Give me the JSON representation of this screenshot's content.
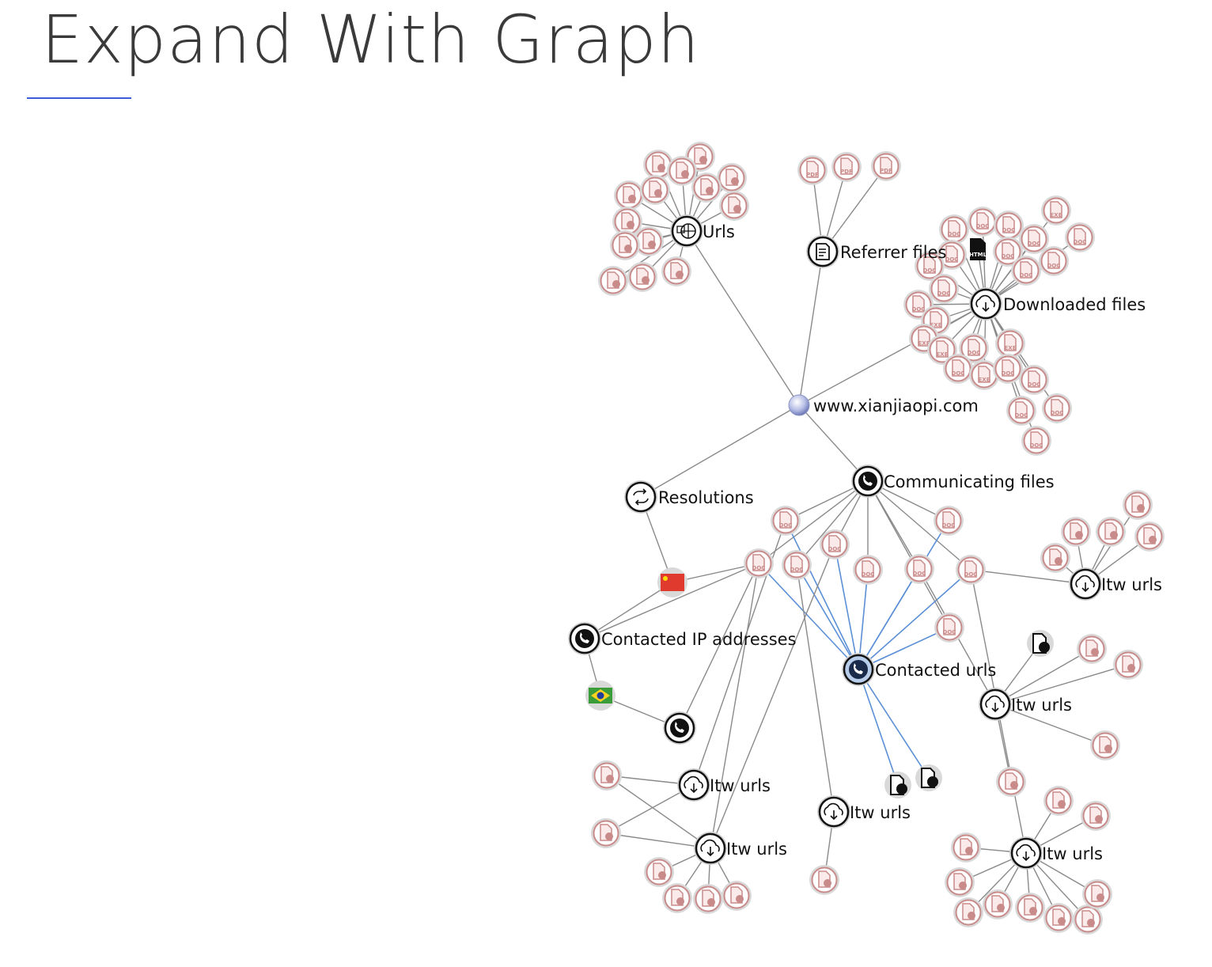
{
  "slide": {
    "title": "Expand With Graph"
  },
  "graph": {
    "colors": {
      "edge": "#8a8a8a",
      "edge_highlight": "#5b8fd6",
      "file_node": "#c98a8a",
      "hub_fill": "#ffffff",
      "selected_fill": "#b8cdea"
    },
    "root": {
      "label": "www.xianjiaopi.com",
      "icon": "globe-icon"
    },
    "hubs": {
      "urls": {
        "label": "Urls",
        "icon": "urls-icon"
      },
      "referrer": {
        "label": "Referrer files",
        "icon": "document-icon"
      },
      "downloaded": {
        "label": "Downloaded files",
        "icon": "cloud-download-icon"
      },
      "resolutions": {
        "label": "Resolutions",
        "icon": "resolutions-icon"
      },
      "communicating": {
        "label": "Communicating files",
        "icon": "phone-icon"
      },
      "contacted_ips": {
        "label": "Contacted IP addresses",
        "icon": "phone-icon"
      },
      "contacted_urls": {
        "label": "Contacted urls",
        "icon": "phone-icon"
      },
      "itw_urls_label": "Itw urls"
    },
    "file_badges": {
      "pdf": "PDF",
      "doc": "DOC",
      "exe": "EXE",
      "html": "HTML"
    },
    "flags": {
      "china": "china-flag-icon",
      "brazil": "brazil-flag-icon"
    }
  }
}
